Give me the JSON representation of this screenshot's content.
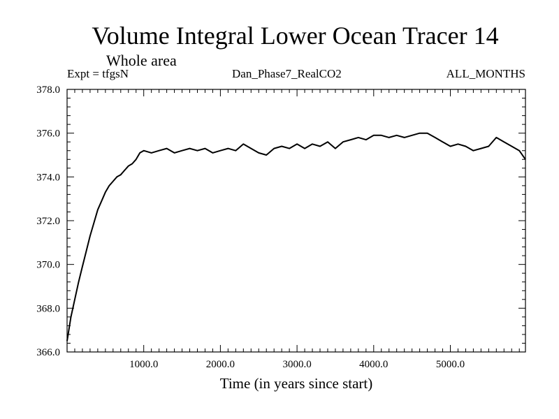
{
  "chart_data": {
    "type": "line",
    "title": "Volume Integral Lower Ocean Tracer 14",
    "subtitle": "Whole area",
    "annotations": {
      "experiment": "Expt = tfgsN",
      "dataset": "Dan_Phase7_RealCO2",
      "months": "ALL_MONTHS"
    },
    "xlabel": "Time (in years since start)",
    "ylabel": "",
    "xlim": [
      0,
      5980
    ],
    "ylim": [
      366.0,
      378.0
    ],
    "x_ticks": [
      1000,
      2000,
      3000,
      4000,
      5000
    ],
    "x_tick_labels": [
      "1000.0",
      "2000.0",
      "3000.0",
      "4000.0",
      "5000.0"
    ],
    "y_ticks": [
      366,
      368,
      370,
      372,
      374,
      376,
      378
    ],
    "y_tick_labels": [
      "366.0",
      "368.0",
      "370.0",
      "372.0",
      "374.0",
      "376.0",
      "378.0"
    ],
    "grid": false,
    "series": [
      {
        "name": "Tracer 14",
        "color": "#000000",
        "x": [
          0,
          50,
          100,
          150,
          200,
          250,
          300,
          350,
          400,
          450,
          500,
          550,
          600,
          650,
          700,
          750,
          800,
          850,
          900,
          950,
          1000,
          1100,
          1200,
          1300,
          1400,
          1500,
          1600,
          1700,
          1800,
          1900,
          2000,
          2100,
          2200,
          2300,
          2400,
          2500,
          2600,
          2700,
          2800,
          2900,
          3000,
          3100,
          3200,
          3300,
          3400,
          3500,
          3600,
          3700,
          3800,
          3900,
          4000,
          4100,
          4200,
          4300,
          4400,
          4500,
          4600,
          4700,
          4800,
          4900,
          5000,
          5100,
          5200,
          5300,
          5400,
          5500,
          5600,
          5700,
          5800,
          5900,
          5980
        ],
        "values": [
          366.5,
          367.6,
          368.4,
          369.2,
          369.9,
          370.6,
          371.3,
          371.9,
          372.5,
          372.9,
          373.3,
          373.6,
          373.8,
          374.0,
          374.1,
          374.3,
          374.5,
          374.6,
          374.8,
          375.1,
          375.2,
          375.1,
          375.2,
          375.3,
          375.1,
          375.2,
          375.3,
          375.2,
          375.3,
          375.1,
          375.2,
          375.3,
          375.2,
          375.5,
          375.3,
          375.1,
          375.0,
          375.3,
          375.4,
          375.3,
          375.5,
          375.3,
          375.5,
          375.4,
          375.6,
          375.3,
          375.6,
          375.7,
          375.8,
          375.7,
          375.9,
          375.9,
          375.8,
          375.9,
          375.8,
          375.9,
          376.0,
          376.0,
          375.8,
          375.6,
          375.4,
          375.5,
          375.4,
          375.2,
          375.3,
          375.4,
          375.8,
          375.6,
          375.4,
          375.2,
          374.8
        ]
      }
    ]
  }
}
